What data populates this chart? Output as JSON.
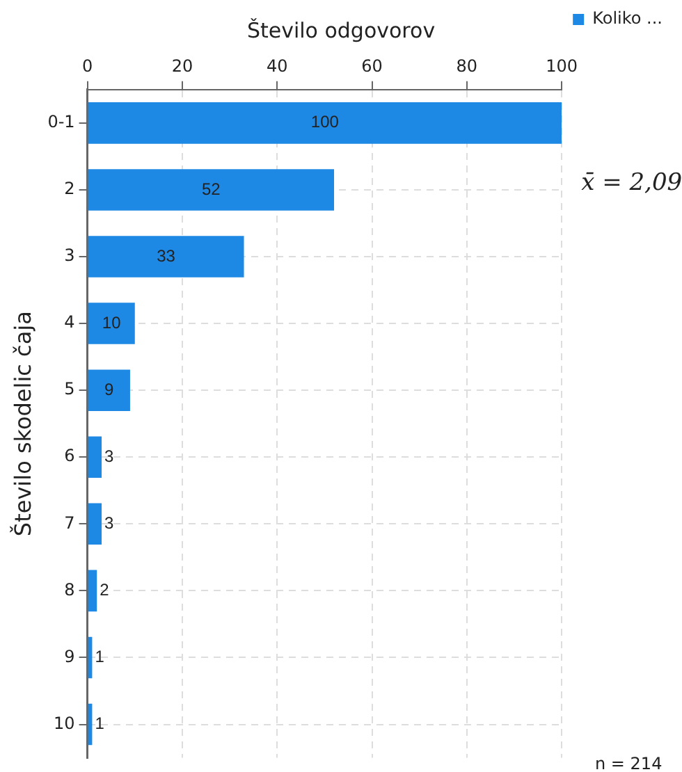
{
  "chart_data": {
    "type": "bar",
    "orientation": "horizontal",
    "title": "Število odgovorov",
    "ylabel": "Število skodelic čaja",
    "categories": [
      "0-1",
      "2",
      "3",
      "4",
      "5",
      "6",
      "7",
      "8",
      "9",
      "10"
    ],
    "series": [
      {
        "name": "Koliko ...",
        "color": "#1e88e5",
        "values": [
          100,
          52,
          33,
          10,
          9,
          3,
          3,
          2,
          1,
          1
        ]
      }
    ],
    "xlim": [
      0,
      100
    ],
    "xticks": [
      0,
      20,
      40,
      60,
      80,
      100
    ],
    "grid": true,
    "legend": "top right",
    "data_labels": true,
    "annotations": [
      "x̄ = 2,09",
      "n = 214"
    ]
  }
}
